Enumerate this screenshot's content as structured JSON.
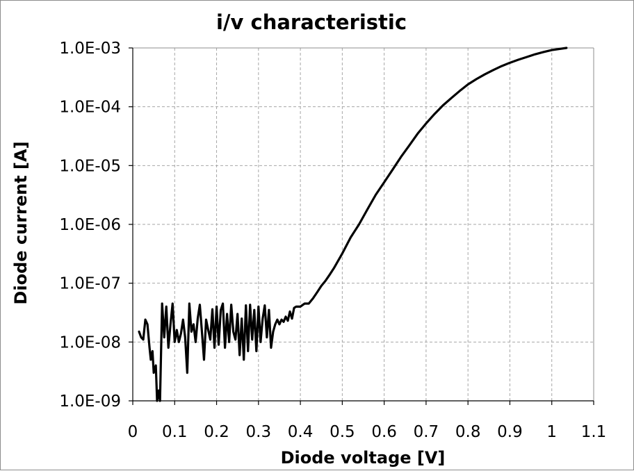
{
  "chart_data": {
    "type": "line",
    "title": "i/v characteristic",
    "xlabel": "Diode voltage [V]",
    "ylabel": "Diode current [A]",
    "xlim": [
      0,
      1.1
    ],
    "ylim": [
      1e-09,
      0.001
    ],
    "yscale": "log",
    "grid": true,
    "legend": "none",
    "x_ticks": [
      "0",
      "0.1",
      "0.2",
      "0.3",
      "0.4",
      "0.5",
      "0.6",
      "0.7",
      "0.8",
      "0.9",
      "1",
      "1.1"
    ],
    "y_ticks": [
      "1.0E-03",
      "1.0E-04",
      "1.0E-05",
      "1.0E-06",
      "1.0E-07",
      "1.0E-08",
      "1.0E-09"
    ],
    "series": [
      {
        "color": "#000000",
        "points": [
          [
            0.015,
            1.5e-08
          ],
          [
            0.02,
            1.2e-08
          ],
          [
            0.025,
            1.1e-08
          ],
          [
            0.03,
            2.4e-08
          ],
          [
            0.035,
            2e-08
          ],
          [
            0.04,
            8e-09
          ],
          [
            0.043,
            5e-09
          ],
          [
            0.047,
            7e-09
          ],
          [
            0.05,
            3e-09
          ],
          [
            0.055,
            4e-09
          ],
          [
            0.058,
            1e-09
          ],
          [
            0.062,
            1.5e-09
          ],
          [
            0.065,
            1e-09
          ],
          [
            0.07,
            4.5e-08
          ],
          [
            0.075,
            1.2e-08
          ],
          [
            0.08,
            4e-08
          ],
          [
            0.085,
            8e-09
          ],
          [
            0.09,
            2e-08
          ],
          [
            0.095,
            4.5e-08
          ],
          [
            0.1,
            1e-08
          ],
          [
            0.105,
            1.6e-08
          ],
          [
            0.11,
            1e-08
          ],
          [
            0.115,
            1.4e-08
          ],
          [
            0.12,
            2.4e-08
          ],
          [
            0.125,
            1.2e-08
          ],
          [
            0.13,
            3e-09
          ],
          [
            0.135,
            4.5e-08
          ],
          [
            0.14,
            1.5e-08
          ],
          [
            0.145,
            2e-08
          ],
          [
            0.15,
            1e-08
          ],
          [
            0.155,
            2.5e-08
          ],
          [
            0.16,
            4.3e-08
          ],
          [
            0.165,
            1.5e-08
          ],
          [
            0.17,
            5e-09
          ],
          [
            0.175,
            2.4e-08
          ],
          [
            0.18,
            1.6e-08
          ],
          [
            0.185,
            1.1e-08
          ],
          [
            0.19,
            3.6e-08
          ],
          [
            0.195,
            8e-09
          ],
          [
            0.2,
            4e-08
          ],
          [
            0.205,
            9e-09
          ],
          [
            0.21,
            3.5e-08
          ],
          [
            0.215,
            4.5e-08
          ],
          [
            0.22,
            8e-09
          ],
          [
            0.225,
            3e-08
          ],
          [
            0.23,
            1e-08
          ],
          [
            0.235,
            4.3e-08
          ],
          [
            0.24,
            1.5e-08
          ],
          [
            0.245,
            1.1e-08
          ],
          [
            0.25,
            3e-08
          ],
          [
            0.255,
            6e-09
          ],
          [
            0.26,
            2.5e-08
          ],
          [
            0.265,
            5e-09
          ],
          [
            0.27,
            4.2e-08
          ],
          [
            0.275,
            7e-09
          ],
          [
            0.28,
            4.3e-08
          ],
          [
            0.285,
            1.1e-08
          ],
          [
            0.29,
            3.5e-08
          ],
          [
            0.295,
            7e-09
          ],
          [
            0.3,
            4e-08
          ],
          [
            0.305,
            1e-08
          ],
          [
            0.31,
            2.5e-08
          ],
          [
            0.315,
            4.2e-08
          ],
          [
            0.32,
            1.2e-08
          ],
          [
            0.325,
            3.5e-08
          ],
          [
            0.33,
            8e-09
          ],
          [
            0.335,
            1.5e-08
          ],
          [
            0.34,
            2e-08
          ],
          [
            0.345,
            2.4e-08
          ],
          [
            0.35,
            2e-08
          ],
          [
            0.355,
            2.4e-08
          ],
          [
            0.36,
            2.2e-08
          ],
          [
            0.365,
            2.7e-08
          ],
          [
            0.37,
            2.3e-08
          ],
          [
            0.375,
            3.3e-08
          ],
          [
            0.38,
            2.5e-08
          ],
          [
            0.385,
            3.8e-08
          ],
          [
            0.39,
            4e-08
          ],
          [
            0.4,
            4e-08
          ],
          [
            0.41,
            4.5e-08
          ],
          [
            0.42,
            4.5e-08
          ],
          [
            0.43,
            5.5e-08
          ],
          [
            0.44,
            7e-08
          ],
          [
            0.45,
            9e-08
          ],
          [
            0.46,
            1.1e-07
          ],
          [
            0.47,
            1.4e-07
          ],
          [
            0.48,
            1.8e-07
          ],
          [
            0.5,
            3.2e-07
          ],
          [
            0.52,
            6e-07
          ],
          [
            0.54,
            1e-06
          ],
          [
            0.56,
            1.8e-06
          ],
          [
            0.58,
            3.2e-06
          ],
          [
            0.6,
            5.2e-06
          ],
          [
            0.62,
            8.5e-06
          ],
          [
            0.64,
            1.4e-05
          ],
          [
            0.66,
            2.2e-05
          ],
          [
            0.68,
            3.5e-05
          ],
          [
            0.7,
            5.2e-05
          ],
          [
            0.72,
            7.5e-05
          ],
          [
            0.74,
            0.000105
          ],
          [
            0.76,
            0.00014
          ],
          [
            0.78,
            0.000185
          ],
          [
            0.8,
            0.00024
          ],
          [
            0.82,
            0.000295
          ],
          [
            0.84,
            0.000355
          ],
          [
            0.86,
            0.00042
          ],
          [
            0.88,
            0.00049
          ],
          [
            0.9,
            0.00056
          ],
          [
            0.92,
            0.00063
          ],
          [
            0.94,
            0.0007
          ],
          [
            0.96,
            0.00078
          ],
          [
            0.98,
            0.00085
          ],
          [
            1.0,
            0.00092
          ],
          [
            1.035,
            0.001
          ]
        ]
      }
    ]
  }
}
